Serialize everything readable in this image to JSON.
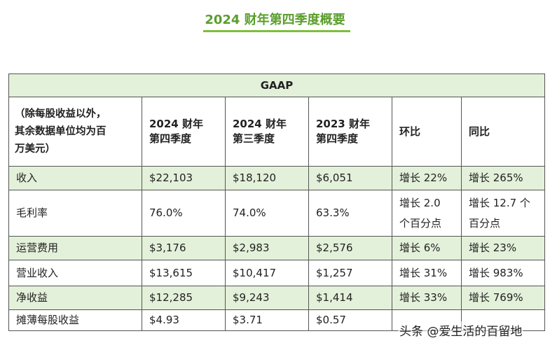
{
  "title": "2024 财年第四季度概要",
  "table": {
    "section_header": "GAAP",
    "note_lines": [
      "（除每股收益以外，",
      "其余数据单位均为百",
      "万美元）"
    ],
    "columns": [
      {
        "line1": "2024 财年",
        "line2": "第四季度"
      },
      {
        "line1": "2024 财年",
        "line2": "第三季度"
      },
      {
        "line1": "2023 财年",
        "line2": "第四季度"
      },
      {
        "line1": "环比",
        "line2": ""
      },
      {
        "line1": "同比",
        "line2": ""
      }
    ],
    "rows": [
      {
        "label": "收入",
        "values": [
          "$22,103",
          "$18,120",
          "$6,051",
          "增长 22%",
          "增长 265%"
        ]
      },
      {
        "label": "毛利率",
        "values": [
          "76.0%",
          "74.0%",
          "63.3%",
          "增长 2.0 个百分点",
          "增长 12.7 个百分点"
        ]
      },
      {
        "label": "运营费用",
        "values": [
          "$3,176",
          "$2,983",
          "$2,576",
          "增长 6%",
          "增长 23%"
        ]
      },
      {
        "label": "营业收入",
        "values": [
          "$13,615",
          "$10,417",
          "$1,257",
          "增长 31%",
          "增长 983%"
        ]
      },
      {
        "label": "净收益",
        "values": [
          "$12,285",
          "$9,243",
          "$1,414",
          "增长 33%",
          "增长 769%"
        ]
      },
      {
        "label": "摊薄每股收益",
        "values": [
          "$4.93",
          "$3.71",
          "$0.57",
          "",
          ""
        ]
      }
    ]
  },
  "watermark": "头条 @爱生活的百留地"
}
